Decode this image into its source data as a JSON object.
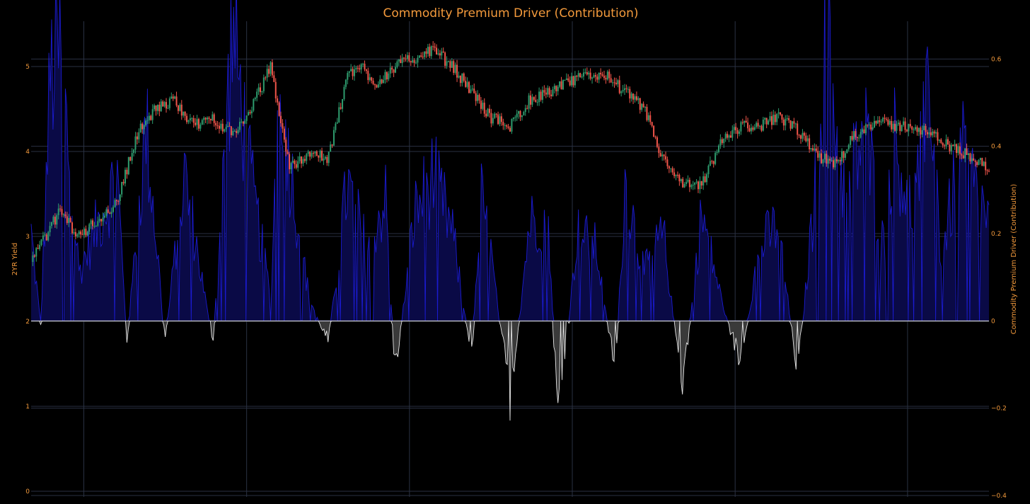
{
  "chart_data": {
    "type": "line",
    "title": "Commodity Premium Driver (Contribution)",
    "y_left_label": "2YR Yield",
    "y_right_label": "Commodity Premium Driver (Contribution)",
    "y_left_ticks": [
      "0",
      "1",
      "2",
      "3",
      "4",
      "5"
    ],
    "y_left_range": [
      -0.05,
      5.5
    ],
    "y_right_ticks": [
      "−0.4",
      "−0.2",
      "0",
      "0.2",
      "0.4",
      "0.6"
    ],
    "y_right_range": [
      -0.4,
      0.68
    ],
    "grid": true,
    "colors": {
      "up_candle": "#2e9c6e",
      "down_candle": "#f0554a",
      "positive_contribution": "#1b1bd0",
      "positive_fill": "#0a0a46",
      "negative_contribution": "#e6e6e6",
      "negative_fill": "#3a3a3a",
      "grid": "#2a3142",
      "text": "#f39a3c"
    },
    "series": [
      {
        "name": "2YR Yield",
        "kind": "candlestick",
        "axis": "left",
        "t": [
          0,
          0.03,
          0.05,
          0.07,
          0.09,
          0.11,
          0.13,
          0.15,
          0.17,
          0.19,
          0.21,
          0.23,
          0.25,
          0.27,
          0.29,
          0.31,
          0.33,
          0.345,
          0.36,
          0.38,
          0.4,
          0.42,
          0.44,
          0.46,
          0.48,
          0.5,
          0.52,
          0.54,
          0.56,
          0.58,
          0.6,
          0.62,
          0.64,
          0.66,
          0.68,
          0.7,
          0.72,
          0.74,
          0.76,
          0.78,
          0.8,
          0.82,
          0.84,
          0.86,
          0.88,
          0.9,
          0.92,
          0.94,
          0.96,
          0.98,
          1.0
        ],
        "y": [
          2.7,
          3.3,
          3.0,
          3.2,
          3.4,
          4.2,
          4.5,
          4.6,
          4.3,
          4.4,
          4.2,
          4.5,
          5.0,
          3.8,
          4.0,
          3.9,
          4.9,
          5.0,
          4.8,
          5.0,
          5.1,
          5.2,
          5.0,
          4.7,
          4.4,
          4.3,
          4.6,
          4.7,
          4.8,
          4.9,
          4.9,
          4.7,
          4.5,
          3.9,
          3.6,
          3.6,
          4.1,
          4.3,
          4.3,
          4.4,
          4.25,
          3.95,
          3.85,
          4.2,
          4.35,
          4.3,
          4.3,
          4.2,
          4.05,
          3.95,
          3.8
        ]
      },
      {
        "name": "Commodity Premium Driver (Contribution)",
        "kind": "area",
        "axis": "right",
        "t": [
          0,
          0.01,
          0.02,
          0.03,
          0.05,
          0.07,
          0.09,
          0.1,
          0.12,
          0.14,
          0.16,
          0.19,
          0.21,
          0.23,
          0.25,
          0.26,
          0.27,
          0.29,
          0.31,
          0.33,
          0.35,
          0.37,
          0.38,
          0.4,
          0.42,
          0.44,
          0.46,
          0.47,
          0.48,
          0.5,
          0.52,
          0.54,
          0.55,
          0.57,
          0.59,
          0.61,
          0.62,
          0.64,
          0.66,
          0.68,
          0.7,
          0.72,
          0.74,
          0.76,
          0.78,
          0.8,
          0.82,
          0.83,
          0.85,
          0.87,
          0.89,
          0.9,
          0.92,
          0.94,
          0.95,
          0.97,
          0.99,
          1.0
        ],
        "y": [
          0.18,
          -0.01,
          0.5,
          0.55,
          0.1,
          0.2,
          0.3,
          -0.05,
          0.4,
          -0.04,
          0.3,
          -0.05,
          0.6,
          0.28,
          0.05,
          0.55,
          0.32,
          0.05,
          -0.05,
          0.28,
          0.15,
          0.25,
          -0.12,
          0.22,
          0.3,
          0.18,
          -0.08,
          0.25,
          0.14,
          -0.18,
          0.2,
          0.22,
          -0.25,
          0.18,
          0.15,
          -0.12,
          0.28,
          0.1,
          0.18,
          -0.15,
          0.22,
          0.05,
          -0.1,
          0.15,
          0.2,
          -0.12,
          0.3,
          0.6,
          0.25,
          0.4,
          0.15,
          0.38,
          0.22,
          0.48,
          0.12,
          0.35,
          0.25,
          0.2
        ]
      }
    ]
  }
}
